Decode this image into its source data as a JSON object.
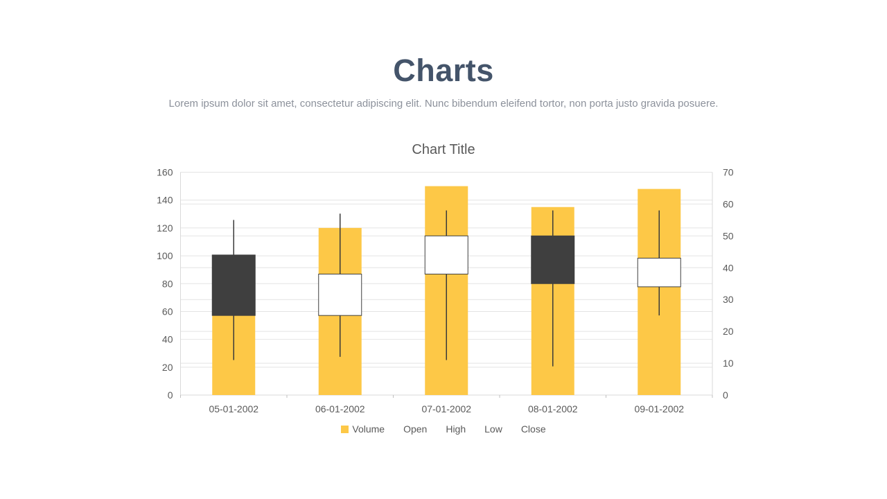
{
  "page": {
    "title": "Charts",
    "subtitle": "Lorem ipsum dolor sit amet, consectetur adipiscing elit. Nunc bibendum eleifend tortor, non porta justo gravida posuere."
  },
  "chart_data": {
    "type": "candlestick",
    "subtype": "volume-open-high-low-close",
    "title": "Chart Title",
    "categories": [
      "05-01-2002",
      "06-01-2002",
      "07-01-2002",
      "08-01-2002",
      "09-01-2002"
    ],
    "volume": {
      "name": "Volume",
      "axis": "left",
      "values": [
        100,
        120,
        150,
        135,
        148
      ]
    },
    "ohlc": {
      "open": [
        44,
        25,
        38,
        50,
        34
      ],
      "high": [
        55,
        57,
        58,
        58,
        58
      ],
      "low": [
        11,
        12,
        11,
        9,
        25
      ],
      "close": [
        25,
        38,
        50,
        35,
        43
      ]
    },
    "left_axis": {
      "min": 0,
      "max": 160,
      "step": 20,
      "ticks": [
        "160",
        "140",
        "120",
        "100",
        "80",
        "60",
        "40",
        "20",
        "0"
      ]
    },
    "right_axis": {
      "min": 0,
      "max": 70,
      "step": 10,
      "ticks": [
        "70",
        "60",
        "50",
        "40",
        "30",
        "20",
        "10",
        "0"
      ]
    },
    "legend": {
      "position": "bottom",
      "items": [
        "Volume",
        "Open",
        "High",
        "Low",
        "Close"
      ],
      "swatches": {
        "Volume": "#FDC847"
      }
    },
    "grid": true,
    "colors": {
      "volume_bar": "#FDC847",
      "candle_down": "#3F3F3F",
      "candle_up": "#FFFFFF",
      "candle_border": "#3F3F3F",
      "wick": "#3A3A3A",
      "gridline": "#E4E4E4",
      "axis_line": "#D9D9D9",
      "tick_mark": "#BFBFBF",
      "axis_text": "#595959",
      "title_text": "#595959",
      "legend_text": "#595959",
      "page_title": "#44546A",
      "page_subtitle": "#8C919B"
    }
  }
}
